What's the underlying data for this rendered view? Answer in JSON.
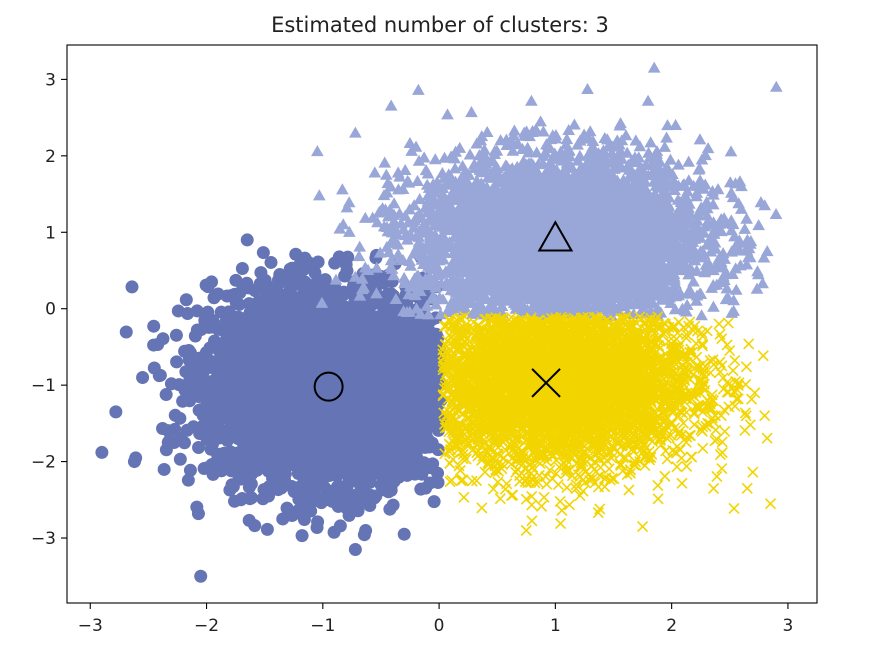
{
  "chart_data": {
    "type": "scatter",
    "title": "Estimated number of clusters: 3",
    "xlabel": "",
    "ylabel": "",
    "xlim": [
      -3.2,
      3.25
    ],
    "ylim": [
      -3.85,
      3.45
    ],
    "xticks": [
      -3,
      -2,
      -1,
      0,
      1,
      2,
      3
    ],
    "yticks": [
      -3,
      -2,
      -1,
      0,
      1,
      2,
      3
    ],
    "xtick_labels": [
      "−3",
      "−2",
      "−1",
      "0",
      "1",
      "2",
      "3"
    ],
    "ytick_labels": [
      "−3",
      "−2",
      "−1",
      "0",
      "1",
      "2",
      "3"
    ],
    "grid": false,
    "series": [
      {
        "marker": "circle",
        "color": "#6474b4",
        "center": [
          -0.95,
          -1.02
        ],
        "spread": [
          0.5,
          0.62
        ],
        "region": {
          "xmax": 0.02,
          "ymax": 0.75
        },
        "count": 4500,
        "outliers": [
          [
            -2.9,
            -1.88
          ],
          [
            -2.05,
            -3.5
          ],
          [
            -1.65,
            0.9
          ],
          [
            -0.72,
            -3.15
          ],
          [
            -2.62,
            -2.0
          ],
          [
            -0.3,
            -2.95
          ],
          [
            -2.78,
            -1.35
          ],
          [
            -2.55,
            -0.9
          ]
        ]
      },
      {
        "marker": "triangle",
        "color": "#99a6d8",
        "center": [
          1.05,
          0.9
        ],
        "spread": [
          0.62,
          0.55
        ],
        "region": {
          "ymin": -0.1
        },
        "count": 4500,
        "outliers": [
          [
            2.9,
            2.9
          ],
          [
            1.85,
            3.15
          ],
          [
            -1.03,
            1.48
          ],
          [
            -0.72,
            2.3
          ],
          [
            2.8,
            1.35
          ],
          [
            2.6,
            1.6
          ]
        ]
      },
      {
        "marker": "x",
        "color": "#f2d500",
        "center": [
          1.0,
          -0.95
        ],
        "spread": [
          0.6,
          0.55
        ],
        "region": {
          "xmin": 0.03,
          "ymax": -0.1
        },
        "count": 4500,
        "outliers": [
          [
            2.85,
            -2.55
          ],
          [
            2.65,
            -2.35
          ],
          [
            2.8,
            -1.4
          ],
          [
            0.75,
            -2.9
          ],
          [
            1.75,
            -2.85
          ]
        ]
      }
    ],
    "cluster_centers": [
      {
        "marker": "circle",
        "x": -0.95,
        "y": -1.02
      },
      {
        "marker": "triangle",
        "x": 1.0,
        "y": 0.92
      },
      {
        "marker": "x",
        "x": 0.92,
        "y": -0.97
      }
    ]
  }
}
